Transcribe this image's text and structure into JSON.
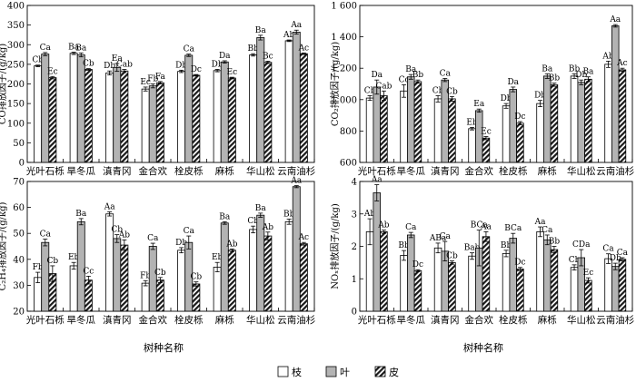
{
  "legend": [
    {
      "label": "枝",
      "fill": "#ffffff"
    },
    {
      "label": "叶",
      "fill": "#b3b3b3"
    },
    {
      "label": "皮",
      "fill": "hatch"
    }
  ],
  "chart_data": [
    {
      "type": "bar",
      "ylabel": "CO排放因子/(g/kg)",
      "ylim": [
        0,
        400
      ],
      "yticks": [
        0,
        50,
        100,
        150,
        200,
        250,
        300,
        350,
        400
      ],
      "categories": [
        "光叶石栎",
        "旱冬瓜",
        "滇青冈",
        "金合欢",
        "栓皮栎",
        "麻栎",
        "华山松",
        "云南油杉"
      ],
      "series": [
        {
          "name": "枝",
          "values": [
            246,
            278,
            228,
            187,
            232,
            234,
            274,
            310
          ],
          "errors": [
            2,
            3,
            5,
            5,
            3,
            3,
            3,
            2
          ],
          "labels": [
            "Cb",
            "Ba",
            "Db",
            "Ec",
            "Db",
            "Db",
            "Bb",
            "Ab"
          ]
        },
        {
          "name": "叶",
          "values": [
            276,
            274,
            242,
            195,
            273,
            256,
            318,
            332
          ],
          "errors": [
            4,
            5,
            10,
            5,
            3,
            3,
            6,
            5
          ],
          "labels": [
            "Ca",
            "Ba",
            "Ea",
            "Fb",
            "Ca",
            "Da",
            "Ba",
            "Aa"
          ]
        },
        {
          "name": "皮",
          "values": [
            216,
            237,
            233,
            203,
            222,
            215,
            255,
            277
          ],
          "errors": [
            3,
            2,
            4,
            3,
            2,
            2,
            3,
            2
          ],
          "labels": [
            "Ec",
            "Cb",
            "Cab",
            "Fa",
            "Dc",
            "Ec",
            "Bc",
            "Ac"
          ]
        }
      ]
    },
    {
      "type": "bar",
      "ylabel": "CO₂排放因子/(g/kg)",
      "ylim": [
        600,
        1600
      ],
      "yticks": [
        600,
        800,
        1000,
        1200,
        1400,
        1600
      ],
      "categories": [
        "光叶石栎",
        "旱冬瓜",
        "滇青冈",
        "金合欢",
        "栓皮栎",
        "麻栎",
        "华山松",
        "云南油杉"
      ],
      "series": [
        {
          "name": "枝",
          "values": [
            1010,
            1055,
            1005,
            815,
            960,
            975,
            1150,
            1225
          ],
          "errors": [
            15,
            40,
            20,
            8,
            15,
            20,
            15,
            20
          ],
          "labels": [
            "Cb",
            "Cc",
            "Cb",
            "Eb",
            "Db",
            "Db",
            "Bb",
            "Ab"
          ]
        },
        {
          "name": "叶",
          "values": [
            1080,
            1145,
            1125,
            930,
            1065,
            1150,
            1110,
            1470
          ],
          "errors": [
            45,
            15,
            10,
            10,
            15,
            15,
            15,
            8
          ],
          "labels": [
            "Da",
            "Ba",
            "Ca",
            "Ea",
            "Da",
            "Ba",
            "Db",
            "Aa"
          ]
        },
        {
          "name": "皮",
          "values": [
            1025,
            1115,
            1005,
            755,
            850,
            1095,
            1130,
            1190
          ],
          "errors": [
            30,
            10,
            15,
            10,
            10,
            10,
            15,
            10
          ],
          "labels": [
            "Cab",
            "Bb",
            "Cb",
            "Ec",
            "Dc",
            "Bb",
            "Ba",
            "Ac"
          ]
        }
      ]
    },
    {
      "type": "bar",
      "ylabel": "C₂H₄排放因子/(g/kg)",
      "ylim": [
        20,
        70
      ],
      "yticks": [
        20,
        30,
        40,
        50,
        60,
        70
      ],
      "categories": [
        "光叶石栎",
        "旱冬瓜",
        "滇青冈",
        "金合欢",
        "栓皮栎",
        "麻栎",
        "华山松",
        "云南油杉"
      ],
      "series": [
        {
          "name": "枝",
          "values": [
            33,
            37.5,
            57.5,
            30.8,
            43.5,
            37,
            51.5,
            54.5
          ],
          "errors": [
            2,
            1.3,
            0.8,
            1,
            1,
            1.8,
            1.3,
            1
          ],
          "labels": [
            "Fb",
            "Eb",
            "Aa",
            "Fb",
            "Db",
            "Eb",
            "Cb",
            "Bb"
          ]
        },
        {
          "name": "叶",
          "values": [
            46.5,
            54.5,
            48,
            45,
            46.5,
            54,
            57,
            68
          ],
          "errors": [
            1.3,
            1.2,
            1.5,
            1.2,
            2.5,
            0.5,
            0.8,
            0.4
          ],
          "labels": [
            "Ca",
            "Ba",
            "Cb",
            "Ca",
            "Ca",
            "Ba",
            "Ba",
            "Aa"
          ]
        },
        {
          "name": "皮",
          "values": [
            34.5,
            32,
            45.5,
            32,
            30.5,
            43.5,
            49,
            46
          ],
          "errors": [
            3,
            1.5,
            2,
            1,
            0.8,
            0.5,
            1.5,
            0.5
          ],
          "labels": [
            "Cb",
            "Cc",
            "Ab",
            "Cb",
            "Cb",
            "Ab",
            "Ab",
            "Ac"
          ]
        }
      ]
    },
    {
      "type": "bar",
      "ylabel": "NOₓ排放因子/(g/kg)",
      "ylim": [
        0,
        4
      ],
      "yticks": [
        0,
        1,
        2,
        3,
        4
      ],
      "xlabel": "树种名称",
      "categories": [
        "光叶石栎",
        "旱冬瓜",
        "滇青冈",
        "金合欢",
        "栓皮栎",
        "麻栎",
        "华山松",
        "云南油杉"
      ],
      "series": [
        {
          "name": "枝",
          "values": [
            2.45,
            1.72,
            1.95,
            1.7,
            1.78,
            2.45,
            1.35,
            1.62
          ],
          "errors": [
            0.4,
            0.15,
            0.15,
            0.1,
            0.1,
            0.15,
            0.08,
            0.15
          ],
          "labels": [
            "Ab",
            "Bb",
            "ABa",
            "Bab",
            "Bb",
            "Aa",
            "Cb",
            "Ca"
          ]
        },
        {
          "name": "叶",
          "values": [
            3.65,
            2.35,
            1.85,
            1.95,
            2.25,
            2.2,
            1.65,
            1.38
          ],
          "errors": [
            0.25,
            0.08,
            0.3,
            0.55,
            0.15,
            0.15,
            0.25,
            0.1
          ],
          "labels": [
            "Aa",
            "Ca",
            "Ca",
            "BCa",
            "BCa",
            "Ca",
            "CDa",
            "Db"
          ]
        },
        {
          "name": "皮",
          "values": [
            2.45,
            1.25,
            1.5,
            2.3,
            1.3,
            1.9,
            0.95,
            1.6
          ],
          "errors": [
            0.05,
            0.03,
            0.05,
            0.15,
            0.05,
            0.1,
            0.08,
            0.05
          ],
          "labels": [
            "Ab",
            "Dc",
            "Cb",
            "Aa",
            "Dc",
            "Bb",
            "Ec",
            "Ca"
          ]
        }
      ]
    }
  ]
}
